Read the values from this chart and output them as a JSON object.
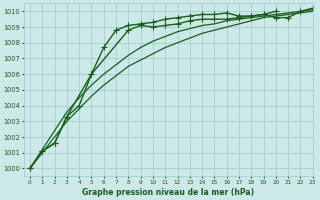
{
  "xlabel": "Graphe pression niveau de la mer (hPa)",
  "ylim": [
    999.5,
    1010.5
  ],
  "xlim": [
    -0.5,
    23
  ],
  "yticks": [
    1000,
    1001,
    1002,
    1003,
    1004,
    1005,
    1006,
    1007,
    1008,
    1009,
    1010
  ],
  "xticks": [
    0,
    1,
    2,
    3,
    4,
    5,
    6,
    7,
    8,
    9,
    10,
    11,
    12,
    13,
    14,
    15,
    16,
    17,
    18,
    19,
    20,
    21,
    22,
    23
  ],
  "bg_color": "#cce8e8",
  "grid_color": "#99cccc",
  "line_color": "#1a5e1a",
  "series_markers": [
    {
      "y": [
        1000.0,
        1001.1,
        1001.6,
        1003.3,
        1006.0,
        1008.8,
        1009.1,
        1009.0,
        1009.1,
        1009.2,
        1009.4,
        1009.5,
        1009.5,
        1009.5,
        1009.6,
        1009.7,
        1009.8,
        1009.6,
        1009.6,
        1010.0,
        1010.2
      ],
      "x": [
        0,
        1,
        2,
        3,
        5,
        8,
        9,
        10,
        11,
        12,
        13,
        14,
        15,
        16,
        17,
        18,
        19,
        20,
        21,
        22,
        23
      ],
      "marker": true
    },
    {
      "y": [
        1000.0,
        1001.1,
        1001.6,
        1003.3,
        1004.0,
        1006.0,
        1007.7,
        1008.8,
        1009.1,
        1009.2,
        1009.3,
        1009.5,
        1009.6,
        1009.7,
        1009.8,
        1009.8,
        1009.9,
        1009.7,
        1009.7,
        1009.8,
        1010.0
      ],
      "x": [
        0,
        1,
        2,
        3,
        4,
        5,
        6,
        7,
        8,
        9,
        10,
        11,
        12,
        13,
        14,
        15,
        16,
        17,
        18,
        19,
        20
      ],
      "marker": true
    }
  ],
  "series_smooth": [
    [
      1000.0,
      1001.2,
      1002.4,
      1003.6,
      1004.5,
      1005.3,
      1006.0,
      1006.6,
      1007.2,
      1007.7,
      1008.1,
      1008.4,
      1008.7,
      1008.9,
      1009.1,
      1009.2,
      1009.4,
      1009.5,
      1009.6,
      1009.7,
      1009.8,
      1009.9,
      1010.0,
      1010.1
    ],
    [
      1000.0,
      1001.0,
      1002.0,
      1003.0,
      1003.8,
      1004.6,
      1005.3,
      1005.9,
      1006.5,
      1006.9,
      1007.3,
      1007.7,
      1008.0,
      1008.3,
      1008.6,
      1008.8,
      1009.0,
      1009.2,
      1009.4,
      1009.6,
      1009.7,
      1009.8,
      1009.9,
      1010.0
    ]
  ],
  "marker_char": "+",
  "marker_size": 4,
  "line_width": 1.0
}
